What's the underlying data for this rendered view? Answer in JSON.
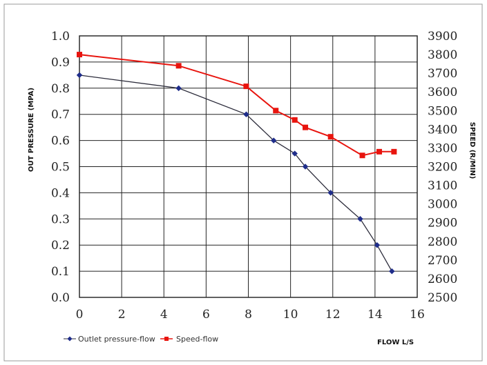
{
  "chart_data": {
    "type": "line",
    "x_axis": {
      "label": "FLOW L/S",
      "min": 0,
      "max": 16,
      "ticks": [
        "0",
        "2",
        "4",
        "6",
        "8",
        "10",
        "12",
        "14",
        "16"
      ],
      "tick_values": [
        0,
        2,
        4,
        6,
        8,
        10,
        12,
        14,
        16
      ]
    },
    "y_axis_left": {
      "label": "OUT PRESSURE (MPA)",
      "min": 0.0,
      "max": 1.0,
      "ticks": [
        "0.0",
        "0.1",
        "0.2",
        "0.3",
        "0.4",
        "0.5",
        "0.6",
        "0.7",
        "0.8",
        "0.9",
        "1.0"
      ],
      "tick_values": [
        0.0,
        0.1,
        0.2,
        0.3,
        0.4,
        0.5,
        0.6,
        0.7,
        0.8,
        0.9,
        1.0
      ]
    },
    "y_axis_right": {
      "label": "SPEED (R/MIN)",
      "min": 2500,
      "max": 3900,
      "ticks": [
        "2500",
        "2600",
        "2700",
        "2800",
        "2900",
        "3000",
        "3100",
        "3200",
        "3300",
        "3400",
        "3500",
        "3600",
        "3700",
        "3800",
        "3900"
      ],
      "tick_values": [
        2500,
        2600,
        2700,
        2800,
        2900,
        3000,
        3100,
        3200,
        3300,
        3400,
        3500,
        3600,
        3700,
        3800,
        3900
      ]
    },
    "grid": true,
    "legend_position": "bottom-left",
    "series": [
      {
        "name": "Outlet pressure-flow",
        "axis": "left",
        "color": "#2b2b3a",
        "marker_color": "#1f2d8a",
        "marker": "diamond",
        "x": [
          0,
          4.7,
          7.9,
          9.2,
          10.2,
          10.7,
          11.9,
          13.3,
          14.1,
          14.8
        ],
        "y": [
          0.85,
          0.8,
          0.7,
          0.6,
          0.55,
          0.5,
          0.4,
          0.3,
          0.2,
          0.1
        ]
      },
      {
        "name": "Speed-flow",
        "axis": "right",
        "color": "#e8140e",
        "marker_color": "#e8140e",
        "marker": "square",
        "x": [
          0,
          4.7,
          7.9,
          9.3,
          10.2,
          10.7,
          11.9,
          13.4,
          14.2,
          14.9
        ],
        "y": [
          3800,
          3740,
          3630,
          3500,
          3450,
          3410,
          3360,
          3260,
          3280,
          3280
        ]
      }
    ]
  }
}
